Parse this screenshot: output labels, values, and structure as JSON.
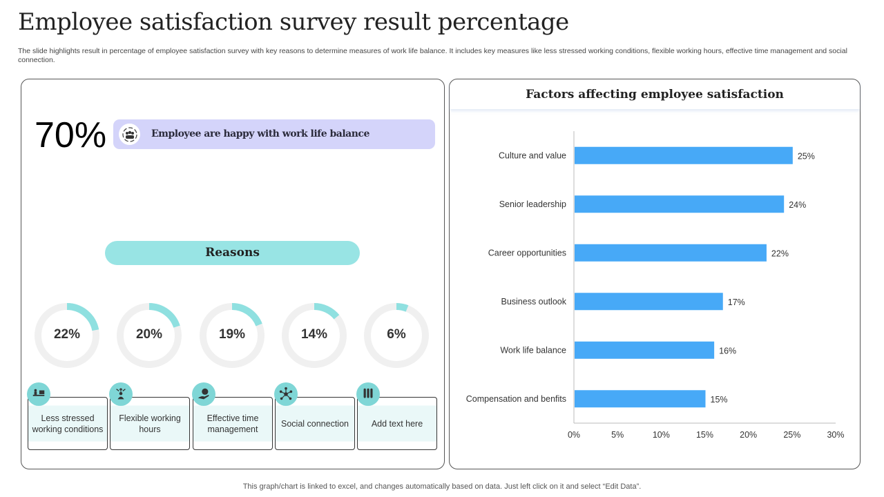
{
  "title": "Employee satisfaction survey result percentage",
  "subtitle": "The slide highlights result in percentage of employee satisfaction survey with key reasons to determine measures of work life balance. It includes key measures like less stressed working conditions, flexible working hours, effective time management and social connection.",
  "highlight": {
    "value": "70%",
    "text": "Employee are happy with work life balance",
    "icon": "team-cycle-icon"
  },
  "reasons_label": "Reasons",
  "reasons": [
    {
      "value": 22,
      "label": "22%",
      "text": "Less stressed working conditions",
      "icon": "desk-worker-icon"
    },
    {
      "value": 20,
      "label": "20%",
      "text": "Flexible working hours",
      "icon": "person-arrows-icon"
    },
    {
      "value": 19,
      "label": "19%",
      "text": "Effective time management",
      "icon": "hand-clock-icon"
    },
    {
      "value": 14,
      "label": "14%",
      "text": "Social connection",
      "icon": "network-icon"
    },
    {
      "value": 6,
      "label": "6%",
      "text": "Add text here",
      "icon": "test-tubes-icon"
    }
  ],
  "colors": {
    "accent": "#8fe0e0",
    "bar": "#47a9f7",
    "donut_track": "#f0f0f0",
    "highlight_bg": "#d4d4fa"
  },
  "chart_data": {
    "type": "bar",
    "orientation": "horizontal",
    "title": "Factors affecting employee satisfaction",
    "categories": [
      "Culture and value",
      "Senior leadership",
      "Career opportunities",
      "Business outlook",
      "Work life balance",
      "Compensation and benfits"
    ],
    "values": [
      25,
      24,
      22,
      17,
      16,
      15
    ],
    "data_labels": [
      "25%",
      "24%",
      "22%",
      "17%",
      "16%",
      "15%"
    ],
    "xlim": [
      0,
      30
    ],
    "xticks": [
      "0%",
      "5%",
      "10%",
      "15%",
      "20%",
      "25%",
      "30%"
    ],
    "grid": false
  },
  "footer": "This graph/chart is linked to excel, and changes automatically based on data. Just left click on it and select “Edit Data”."
}
